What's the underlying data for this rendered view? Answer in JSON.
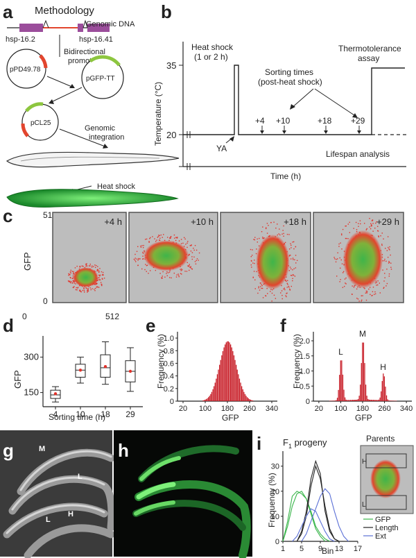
{
  "panels": {
    "a": "a",
    "b": "b",
    "c": "c",
    "d": "d",
    "e": "e",
    "f": "f",
    "g": "g",
    "h": "h",
    "i": "i"
  },
  "a": {
    "title": "Methodology",
    "genomic_dna": "Genomic DNA",
    "gene_left": "hsp-16.2",
    "gene_right": "hsp-16.41",
    "bidirectional": [
      "Bidirectional",
      "promoter"
    ],
    "plasmid1": "pPD49.78",
    "plasmid2": "pGFP-TT",
    "plasmid3": "pCL25",
    "integration": [
      "Genomic",
      "integration"
    ],
    "heat_shock": "Heat shock"
  },
  "b": {
    "ylabel": "Temperature (°C)",
    "xlabel": "Time (h)",
    "yticks": [
      "35",
      "20"
    ],
    "heat_shock": [
      "Heat shock",
      "(1 or 2 h)"
    ],
    "thermo": [
      "Thermotolerance",
      "assay"
    ],
    "sorting": [
      "Sorting times",
      "(post-heat shock)"
    ],
    "times": [
      "+4",
      "+10",
      "+18",
      "+29"
    ],
    "ya": "YA",
    "lifespan": "Lifespan analysis"
  },
  "c": {
    "ylabel": "GFP",
    "ymax": "512",
    "ymin": "0",
    "x0": "0",
    "xmax": "512",
    "plots": [
      "+4 h",
      "+10 h",
      "+18 h",
      "+29 h"
    ]
  },
  "chart_data": [
    {
      "panel": "d",
      "type": "box",
      "categories": [
        "4",
        "10",
        "18",
        "29"
      ],
      "xlabel": "Sorting time (h)",
      "ylabel": "GFP",
      "yticks": [
        "150",
        "300"
      ],
      "ylim": [
        90,
        390
      ],
      "boxes": [
        {
          "min": 110,
          "q1": 125,
          "median": 140,
          "q3": 160,
          "max": 175,
          "mean": 145
        },
        {
          "min": 190,
          "q1": 215,
          "median": 245,
          "q3": 270,
          "max": 300,
          "mean": 245
        },
        {
          "min": 185,
          "q1": 215,
          "median": 255,
          "q3": 310,
          "max": 365,
          "mean": 260
        },
        {
          "min": 155,
          "q1": 195,
          "median": 240,
          "q3": 285,
          "max": 340,
          "mean": 240
        }
      ]
    },
    {
      "panel": "e",
      "type": "bar",
      "xlabel": "GFP",
      "ylabel": "Frequency (%)",
      "xticks": [
        "20",
        "100",
        "180",
        "260",
        "340"
      ],
      "yticks": [
        "0",
        "0.2",
        "0.4",
        "0.6",
        "0.8",
        "1.0"
      ],
      "xlim": [
        0,
        360
      ],
      "ylim": [
        0,
        1.1
      ],
      "distribution": {
        "mean": 180,
        "sd": 30,
        "peak": 0.95
      }
    },
    {
      "panel": "f",
      "type": "bar",
      "xlabel": "GFP",
      "ylabel": "Frequency (%)",
      "xticks": [
        "20",
        "100",
        "180",
        "260",
        "340"
      ],
      "yticks": [
        "0",
        "0.5",
        "1.0",
        "1.5",
        "2.0"
      ],
      "xlim": [
        0,
        360
      ],
      "ylim": [
        0,
        2.3
      ],
      "peaks": [
        {
          "label": "L",
          "center": 100,
          "height": 1.4
        },
        {
          "label": "M",
          "center": 180,
          "height": 2.0
        },
        {
          "label": "H",
          "center": 255,
          "height": 0.9
        }
      ]
    },
    {
      "panel": "i",
      "type": "line",
      "title": "F1 progeny",
      "xlabel": "Bin",
      "ylabel": "Frequency (%)",
      "xticks": [
        "1",
        "5",
        "9",
        "13",
        "17"
      ],
      "yticks": [
        "0",
        "10",
        "20",
        "30"
      ],
      "xlim": [
        1,
        17
      ],
      "ylim": [
        0,
        36
      ],
      "series": [
        {
          "name": "GFP",
          "color": "#39b54a",
          "curves": [
            [
              1,
              0
            ],
            [
              2,
              8
            ],
            [
              3,
              18
            ],
            [
              4,
              20
            ],
            [
              5,
              19
            ],
            [
              6,
              17
            ],
            [
              7,
              12
            ],
            [
              8,
              6
            ],
            [
              9,
              3
            ],
            [
              10,
              1
            ],
            [
              11,
              0
            ]
          ],
          "curves2": [
            [
              1,
              0
            ],
            [
              2,
              6
            ],
            [
              3,
              14
            ],
            [
              4,
              19
            ],
            [
              5,
              20
            ],
            [
              6,
              17
            ],
            [
              7,
              11
            ],
            [
              8,
              5
            ],
            [
              9,
              2
            ],
            [
              10,
              0
            ]
          ]
        },
        {
          "name": "Length",
          "color": "#222222",
          "curves": [
            [
              4,
              0
            ],
            [
              5,
              4
            ],
            [
              6,
              12
            ],
            [
              7,
              25
            ],
            [
              8,
              32
            ],
            [
              9,
              27
            ],
            [
              10,
              12
            ],
            [
              11,
              4
            ],
            [
              12,
              1
            ],
            [
              13,
              0
            ]
          ],
          "curves2": [
            [
              4,
              0
            ],
            [
              5,
              3
            ],
            [
              6,
              10
            ],
            [
              7,
              22
            ],
            [
              8,
              30
            ],
            [
              9,
              25
            ],
            [
              10,
              14
            ],
            [
              11,
              5
            ],
            [
              12,
              1
            ],
            [
              13,
              0
            ]
          ]
        },
        {
          "name": "Ext",
          "color": "#5a6fd6",
          "curves": [
            [
              5,
              0
            ],
            [
              6,
              3
            ],
            [
              7,
              8
            ],
            [
              8,
              13
            ],
            [
              9,
              18
            ],
            [
              10,
              21
            ],
            [
              11,
              19
            ],
            [
              12,
              12
            ],
            [
              13,
              6
            ],
            [
              14,
              2
            ],
            [
              15,
              0
            ]
          ],
          "curves2": [
            [
              3,
              0
            ],
            [
              4,
              2
            ],
            [
              5,
              6
            ],
            [
              6,
              10
            ],
            [
              7,
              13
            ],
            [
              8,
              12
            ],
            [
              9,
              8
            ],
            [
              10,
              4
            ],
            [
              11,
              1
            ],
            [
              12,
              0
            ]
          ]
        }
      ]
    }
  ],
  "g": {
    "labels": [
      "M",
      "L",
      "L",
      "H"
    ]
  },
  "i": {
    "title": "F",
    "title_sub": "1",
    "title_rest": " progeny",
    "inset_title": "Parents",
    "inset_h": "H",
    "inset_l": "L"
  }
}
